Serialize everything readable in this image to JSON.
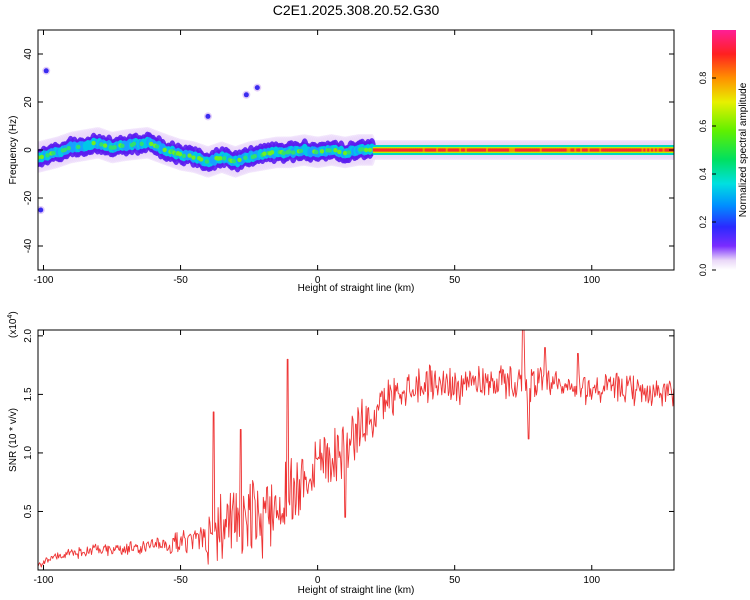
{
  "title": "C2E1.2025.308.20.52.G30",
  "chart_data": [
    {
      "type": "heatmap",
      "xlabel": "Height of straight line (km)",
      "ylabel": "Frequency (Hz)",
      "xlim": [
        -102,
        130
      ],
      "ylim": [
        -50,
        50
      ],
      "xticks": [
        -100,
        -50,
        0,
        50,
        100
      ],
      "yticks": [
        -40,
        -20,
        0,
        20,
        40
      ],
      "colorbar": {
        "label": "Normalized spectral amplitude",
        "range": [
          0,
          1
        ],
        "ticks": [
          0.0,
          0.2,
          0.4,
          0.6,
          0.8
        ],
        "tick_labels": [
          "0.0",
          "0.2",
          "0.4",
          "0.6",
          "0.8"
        ]
      },
      "ridge": [
        {
          "x": -102,
          "f": -3
        },
        {
          "x": -95,
          "f": -1
        },
        {
          "x": -90,
          "f": 1
        },
        {
          "x": -85,
          "f": 2
        },
        {
          "x": -80,
          "f": 3
        },
        {
          "x": -75,
          "f": 1
        },
        {
          "x": -70,
          "f": 2
        },
        {
          "x": -62,
          "f": 3
        },
        {
          "x": -55,
          "f": 0
        },
        {
          "x": -50,
          "f": -2
        },
        {
          "x": -45,
          "f": -3
        },
        {
          "x": -40,
          "f": -5
        },
        {
          "x": -35,
          "f": -3
        },
        {
          "x": -30,
          "f": -5
        },
        {
          "x": -25,
          "f": -3
        },
        {
          "x": -20,
          "f": -2
        },
        {
          "x": -15,
          "f": -1
        },
        {
          "x": -10,
          "f": -1
        },
        {
          "x": -5,
          "f": 0
        },
        {
          "x": 0,
          "f": -1
        },
        {
          "x": 5,
          "f": 0
        },
        {
          "x": 10,
          "f": -1
        },
        {
          "x": 15,
          "f": 0
        },
        {
          "x": 20,
          "f": 0
        },
        {
          "x": 130,
          "f": 0
        }
      ],
      "isolated_spots": [
        {
          "x": -40,
          "f": 14
        },
        {
          "x": -26,
          "f": 23
        },
        {
          "x": -22,
          "f": 26
        },
        {
          "x": -101,
          "f": -25
        },
        {
          "x": -99,
          "f": 33
        }
      ]
    },
    {
      "type": "line",
      "xlabel": "Height of straight line (km)",
      "ylabel": "SNR (10 * v/v)",
      "yexp": "(x10",
      "yexp_power": "4",
      "yexp_close": ")",
      "xlim": [
        -102,
        130
      ],
      "ylim": [
        0,
        2.05
      ],
      "xticks": [
        -100,
        -50,
        0,
        50,
        100
      ],
      "yticks": [
        0.5,
        1.0,
        1.5,
        2.0
      ],
      "ytick_labels": [
        "0.5",
        "1.0",
        "1.5",
        "2.0"
      ],
      "color": "#ee3333",
      "trend": [
        {
          "x": -102,
          "y": 0.05
        },
        {
          "x": -95,
          "y": 0.12
        },
        {
          "x": -85,
          "y": 0.16
        },
        {
          "x": -70,
          "y": 0.18
        },
        {
          "x": -55,
          "y": 0.22
        },
        {
          "x": -45,
          "y": 0.25
        },
        {
          "x": -40,
          "y": 0.35
        },
        {
          "x": -30,
          "y": 0.42
        },
        {
          "x": -20,
          "y": 0.45
        },
        {
          "x": -15,
          "y": 0.55
        },
        {
          "x": -10,
          "y": 0.65
        },
        {
          "x": -5,
          "y": 0.8
        },
        {
          "x": 0,
          "y": 0.95
        },
        {
          "x": 5,
          "y": 1.0
        },
        {
          "x": 10,
          "y": 1.05
        },
        {
          "x": 15,
          "y": 1.2
        },
        {
          "x": 20,
          "y": 1.3
        },
        {
          "x": 25,
          "y": 1.45
        },
        {
          "x": 30,
          "y": 1.55
        },
        {
          "x": 40,
          "y": 1.6
        },
        {
          "x": 50,
          "y": 1.58
        },
        {
          "x": 60,
          "y": 1.62
        },
        {
          "x": 70,
          "y": 1.6
        },
        {
          "x": 80,
          "y": 1.6
        },
        {
          "x": 90,
          "y": 1.55
        },
        {
          "x": 100,
          "y": 1.55
        },
        {
          "x": 110,
          "y": 1.55
        },
        {
          "x": 120,
          "y": 1.52
        },
        {
          "x": 130,
          "y": 1.5
        }
      ],
      "noise_amplitude": [
        {
          "x": -102,
          "a": 0.04
        },
        {
          "x": -60,
          "a": 0.08
        },
        {
          "x": -45,
          "a": 0.12
        },
        {
          "x": -40,
          "a": 0.35
        },
        {
          "x": -20,
          "a": 0.4
        },
        {
          "x": -10,
          "a": 0.4
        },
        {
          "x": 10,
          "a": 0.3
        },
        {
          "x": 25,
          "a": 0.2
        },
        {
          "x": 60,
          "a": 0.18
        },
        {
          "x": 130,
          "a": 0.15
        }
      ],
      "peaks": [
        {
          "x": -38,
          "y": 1.35
        },
        {
          "x": -28,
          "y": 1.2
        },
        {
          "x": -11,
          "y": 1.8
        },
        {
          "x": 10,
          "y": 0.45
        },
        {
          "x": 75,
          "y": 2.05
        },
        {
          "x": 77,
          "y": 1.12
        },
        {
          "x": 83,
          "y": 1.9
        },
        {
          "x": 95,
          "y": 1.85
        }
      ]
    }
  ]
}
